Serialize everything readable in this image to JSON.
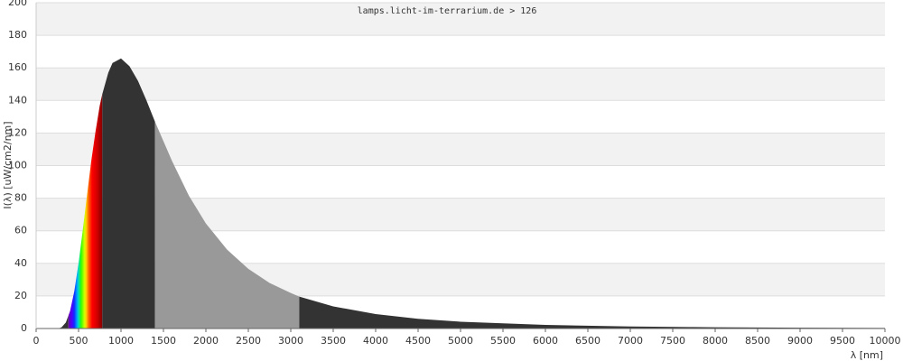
{
  "chart_data": {
    "type": "area",
    "title": "lamps.licht-im-terrarium.de > 126",
    "xlabel": "λ [nm]",
    "ylabel": "I(λ) [uW/cm2/nm]",
    "x": [
      280,
      300,
      350,
      400,
      450,
      500,
      550,
      600,
      650,
      700,
      750,
      780,
      850,
      900,
      1000,
      1100,
      1200,
      1300,
      1400,
      1600,
      1800,
      2000,
      2250,
      2500,
      2750,
      3000,
      3100,
      3500,
      4000,
      4500,
      5000,
      6000,
      7000,
      7750,
      8000,
      9000,
      10000
    ],
    "values": [
      0.34,
      0.77,
      3.66,
      10.7,
      22.9,
      40.2,
      60.5,
      82.0,
      103,
      121,
      137,
      144,
      157,
      163,
      165.8,
      161,
      152,
      140,
      127,
      103,
      81.5,
      64.5,
      48.4,
      36.6,
      28.0,
      21.8,
      19.6,
      13.6,
      8.84,
      5.98,
      4.18,
      2.21,
      1.28,
      0.88,
      0.78,
      0.51,
      0.34
    ],
    "bands": [
      {
        "from": 270,
        "to": 380,
        "color": "#333333"
      },
      {
        "from": 380,
        "to": 780,
        "spectrum": true
      },
      {
        "from": 780,
        "to": 1400,
        "color": "#333333"
      },
      {
        "from": 1400,
        "to": 3100,
        "color": "#999999"
      },
      {
        "from": 3100,
        "to": 10000,
        "color": "#333333"
      }
    ],
    "xlim": [
      0,
      10000
    ],
    "xticks": [
      0,
      500,
      1000,
      1500,
      2000,
      2500,
      3000,
      3500,
      4000,
      4500,
      5000,
      5500,
      6000,
      6500,
      7000,
      7500,
      8000,
      8500,
      9000,
      9500,
      10000
    ],
    "ylim": [
      0,
      200
    ],
    "yticks": [
      0,
      20,
      40,
      60,
      80,
      100,
      120,
      140,
      160,
      180,
      200
    ],
    "grid": true,
    "band_colors": [
      "#f2f2f2",
      "#ffffff"
    ]
  }
}
